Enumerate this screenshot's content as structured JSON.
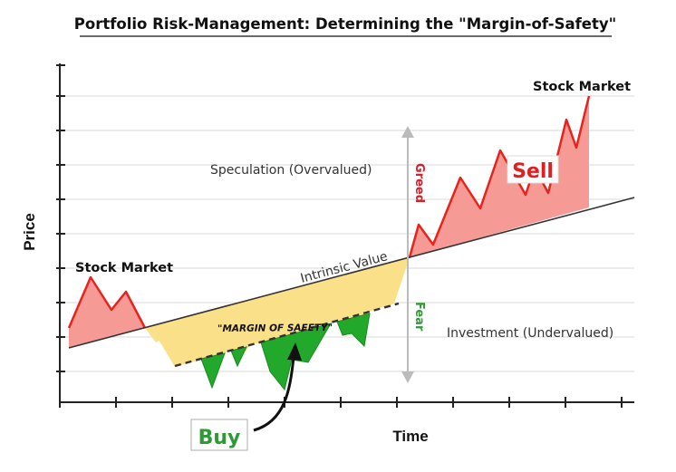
{
  "title": "Portfolio Risk-Management: Determining the \"Margin-of-Safety\"",
  "axes": {
    "y_label": "Price",
    "x_label": "Time"
  },
  "labels": {
    "intrinsic_value": "Intrinsic Value",
    "margin_of_safety": "\"MARGIN OF SAFETY\"",
    "speculation": "Speculation (Overvalued)",
    "investment": "Investment (Undervalued)",
    "stock_market_left": "Stock Market",
    "stock_market_right": "Stock Market",
    "greed": "Greed",
    "fear": "Fear",
    "sell": "Sell",
    "buy": "Buy"
  },
  "colors": {
    "red_line": "#e8231c",
    "red_fill": "#f59a94",
    "yellow_fill": "#fbe08a",
    "green_fill": "#22a82a",
    "grid": "#d9d9d9",
    "greed_text": "#d8202a",
    "fear_text": "#2e9a35",
    "sell_text": "#e02020",
    "buy_text": "#2e9a35",
    "arrow_gray": "#bbbbbb"
  },
  "icons": {
    "buy_pointer": "curved-arrow-icon",
    "greed_fear_range": "double-arrow-icon"
  }
}
